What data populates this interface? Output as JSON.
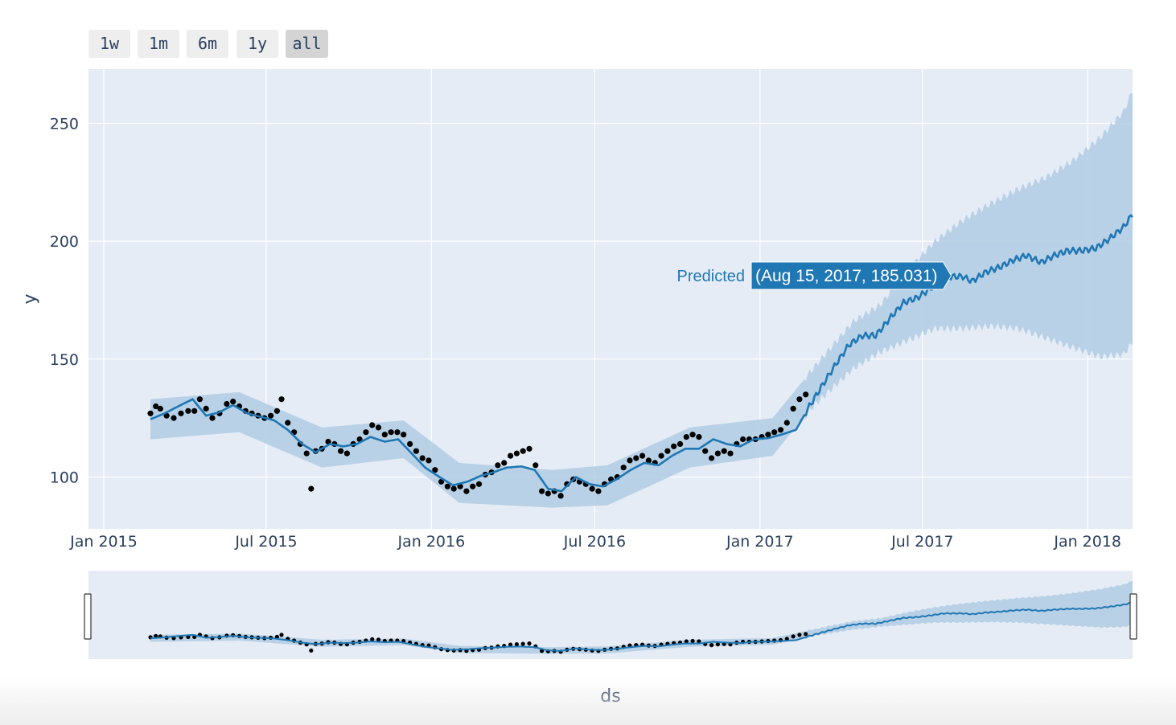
{
  "rangeselector": {
    "buttons": [
      {
        "label": "1w",
        "active": false
      },
      {
        "label": "1m",
        "active": false
      },
      {
        "label": "6m",
        "active": false
      },
      {
        "label": "1y",
        "active": false
      },
      {
        "label": "all",
        "active": true
      }
    ]
  },
  "hover": {
    "name": "Predicted",
    "label": "(Aug 15, 2017, 185.031)",
    "x": "2017-08-15",
    "y": 185.031
  },
  "colors": {
    "plot_bg": "#e5ecf6",
    "grid": "#ffffff",
    "actual_points": "#000000",
    "predicted_line": "#1f77b4",
    "interval_band": "#b0cce3",
    "text": "#2a3f5f"
  },
  "chart_data": {
    "type": "line",
    "title": "",
    "xlabel": "ds",
    "ylabel": "y",
    "x_axis_type": "date",
    "xlim": [
      "2014-12-15",
      "2018-02-20"
    ],
    "ylim": [
      78,
      273
    ],
    "x_ticks": [
      {
        "date": "2015-01-01",
        "label": "Jan 2015"
      },
      {
        "date": "2015-07-01",
        "label": "Jul 2015"
      },
      {
        "date": "2016-01-01",
        "label": "Jan 2016"
      },
      {
        "date": "2016-07-01",
        "label": "Jul 2016"
      },
      {
        "date": "2017-01-01",
        "label": "Jan 2017"
      },
      {
        "date": "2017-07-01",
        "label": "Jul 2017"
      },
      {
        "date": "2018-01-01",
        "label": "Jan 2018"
      }
    ],
    "y_ticks": [
      100,
      150,
      200,
      250
    ],
    "grid": true,
    "rangeslider": true,
    "series": [
      {
        "name": "Predicted",
        "kind": "line",
        "points": [
          [
            "2015-02-22",
            124.5
          ],
          [
            "2015-03-10",
            127
          ],
          [
            "2015-03-25",
            130
          ],
          [
            "2015-04-10",
            133
          ],
          [
            "2015-04-25",
            126
          ],
          [
            "2015-05-10",
            127.5
          ],
          [
            "2015-05-25",
            130.5
          ],
          [
            "2015-06-10",
            127
          ],
          [
            "2015-06-25",
            125.5
          ],
          [
            "2015-07-10",
            124
          ],
          [
            "2015-07-25",
            120
          ],
          [
            "2015-08-10",
            114
          ],
          [
            "2015-08-25",
            110.5
          ],
          [
            "2015-09-10",
            114
          ],
          [
            "2015-09-25",
            113
          ],
          [
            "2015-10-10",
            114
          ],
          [
            "2015-10-25",
            117
          ],
          [
            "2015-11-10",
            115
          ],
          [
            "2015-11-25",
            116
          ],
          [
            "2015-12-10",
            110
          ],
          [
            "2015-12-25",
            104
          ],
          [
            "2016-01-10",
            100
          ],
          [
            "2016-01-25",
            96.5
          ],
          [
            "2016-02-10",
            98
          ],
          [
            "2016-02-25",
            100.5
          ],
          [
            "2016-03-10",
            102
          ],
          [
            "2016-03-25",
            104
          ],
          [
            "2016-04-10",
            104.5
          ],
          [
            "2016-04-25",
            103
          ],
          [
            "2016-05-10",
            95
          ],
          [
            "2016-05-25",
            94
          ],
          [
            "2016-06-10",
            100
          ],
          [
            "2016-06-25",
            97
          ],
          [
            "2016-07-10",
            96
          ],
          [
            "2016-07-25",
            99
          ],
          [
            "2016-08-10",
            103
          ],
          [
            "2016-08-25",
            106
          ],
          [
            "2016-09-10",
            105
          ],
          [
            "2016-09-25",
            109
          ],
          [
            "2016-10-10",
            112
          ],
          [
            "2016-10-25",
            112
          ],
          [
            "2016-11-10",
            116
          ],
          [
            "2016-11-25",
            114
          ],
          [
            "2016-12-10",
            113
          ],
          [
            "2016-12-25",
            116
          ],
          [
            "2017-01-10",
            116.5
          ],
          [
            "2017-01-25",
            118
          ],
          [
            "2017-02-10",
            120
          ],
          [
            "2017-02-25",
            130
          ],
          [
            "2017-03-10",
            138
          ],
          [
            "2017-03-25",
            147
          ],
          [
            "2017-04-10",
            156
          ],
          [
            "2017-04-25",
            160
          ],
          [
            "2017-05-10",
            160
          ],
          [
            "2017-05-25",
            167
          ],
          [
            "2017-06-10",
            174
          ],
          [
            "2017-06-25",
            176
          ],
          [
            "2017-07-10",
            180
          ],
          [
            "2017-07-25",
            185
          ],
          [
            "2017-08-15",
            185.031
          ],
          [
            "2017-08-25",
            183
          ],
          [
            "2017-09-10",
            187
          ],
          [
            "2017-09-25",
            189
          ],
          [
            "2017-10-10",
            192
          ],
          [
            "2017-10-25",
            194
          ],
          [
            "2017-11-10",
            191
          ],
          [
            "2017-11-25",
            194
          ],
          [
            "2017-12-10",
            196
          ],
          [
            "2017-12-25",
            196
          ],
          [
            "2018-01-10",
            197
          ],
          [
            "2018-01-25",
            201
          ],
          [
            "2018-02-10",
            206
          ],
          [
            "2018-02-20",
            211.5
          ]
        ]
      },
      {
        "name": "Interval",
        "kind": "band",
        "points": [
          [
            "2015-02-22",
            116,
            133
          ],
          [
            "2015-06-01",
            119,
            136
          ],
          [
            "2015-09-01",
            104,
            121
          ],
          [
            "2015-12-01",
            108,
            124
          ],
          [
            "2016-02-01",
            89,
            106
          ],
          [
            "2016-05-15",
            87,
            103
          ],
          [
            "2016-07-15",
            88,
            105
          ],
          [
            "2016-10-15",
            104,
            121
          ],
          [
            "2017-01-15",
            109,
            125
          ],
          [
            "2017-03-01",
            130,
            146
          ],
          [
            "2017-04-15",
            146,
            166
          ],
          [
            "2017-05-15",
            153,
            173
          ],
          [
            "2017-06-15",
            158,
            188
          ],
          [
            "2017-07-15",
            163,
            200
          ],
          [
            "2017-08-15",
            163,
            209
          ],
          [
            "2017-09-15",
            164,
            216
          ],
          [
            "2017-10-15",
            163,
            222
          ],
          [
            "2017-11-15",
            159,
            227
          ],
          [
            "2017-12-15",
            155,
            234
          ],
          [
            "2018-01-15",
            151,
            244
          ],
          [
            "2018-02-10",
            152,
            255
          ],
          [
            "2018-02-20",
            157,
            264
          ]
        ]
      },
      {
        "name": "Actual",
        "kind": "markers",
        "points": [
          [
            "2015-02-22",
            127
          ],
          [
            "2015-02-28",
            130
          ],
          [
            "2015-03-05",
            129
          ],
          [
            "2015-03-12",
            126
          ],
          [
            "2015-03-20",
            125
          ],
          [
            "2015-03-28",
            127
          ],
          [
            "2015-04-05",
            128
          ],
          [
            "2015-04-12",
            128
          ],
          [
            "2015-04-18",
            133
          ],
          [
            "2015-04-25",
            129
          ],
          [
            "2015-05-02",
            125
          ],
          [
            "2015-05-10",
            127
          ],
          [
            "2015-05-18",
            131
          ],
          [
            "2015-05-25",
            132
          ],
          [
            "2015-06-01",
            130
          ],
          [
            "2015-06-08",
            128
          ],
          [
            "2015-06-15",
            127
          ],
          [
            "2015-06-22",
            126
          ],
          [
            "2015-06-29",
            125
          ],
          [
            "2015-07-06",
            126
          ],
          [
            "2015-07-13",
            128
          ],
          [
            "2015-07-18",
            133
          ],
          [
            "2015-07-25",
            123
          ],
          [
            "2015-08-01",
            119
          ],
          [
            "2015-08-08",
            114
          ],
          [
            "2015-08-15",
            110
          ],
          [
            "2015-08-20",
            95
          ],
          [
            "2015-08-25",
            111
          ],
          [
            "2015-09-01",
            112
          ],
          [
            "2015-09-08",
            115
          ],
          [
            "2015-09-15",
            114
          ],
          [
            "2015-09-22",
            111
          ],
          [
            "2015-09-29",
            110
          ],
          [
            "2015-10-06",
            114
          ],
          [
            "2015-10-13",
            116
          ],
          [
            "2015-10-20",
            119
          ],
          [
            "2015-10-27",
            122
          ],
          [
            "2015-11-03",
            121
          ],
          [
            "2015-11-10",
            118
          ],
          [
            "2015-11-17",
            119
          ],
          [
            "2015-11-24",
            119
          ],
          [
            "2015-12-01",
            118
          ],
          [
            "2015-12-08",
            114
          ],
          [
            "2015-12-15",
            111
          ],
          [
            "2015-12-22",
            108
          ],
          [
            "2015-12-29",
            107
          ],
          [
            "2016-01-05",
            103
          ],
          [
            "2016-01-12",
            98
          ],
          [
            "2016-01-19",
            96
          ],
          [
            "2016-01-26",
            95
          ],
          [
            "2016-02-02",
            96
          ],
          [
            "2016-02-09",
            94
          ],
          [
            "2016-02-16",
            96
          ],
          [
            "2016-02-23",
            97
          ],
          [
            "2016-03-01",
            101
          ],
          [
            "2016-03-08",
            102
          ],
          [
            "2016-03-15",
            105
          ],
          [
            "2016-03-22",
            106
          ],
          [
            "2016-03-29",
            109
          ],
          [
            "2016-04-05",
            110
          ],
          [
            "2016-04-12",
            111
          ],
          [
            "2016-04-19",
            112
          ],
          [
            "2016-04-26",
            105
          ],
          [
            "2016-05-03",
            94
          ],
          [
            "2016-05-10",
            93
          ],
          [
            "2016-05-17",
            94
          ],
          [
            "2016-05-24",
            92
          ],
          [
            "2016-05-31",
            97
          ],
          [
            "2016-06-07",
            99
          ],
          [
            "2016-06-14",
            98
          ],
          [
            "2016-06-21",
            97
          ],
          [
            "2016-06-28",
            95
          ],
          [
            "2016-07-05",
            94
          ],
          [
            "2016-07-12",
            97
          ],
          [
            "2016-07-19",
            99
          ],
          [
            "2016-07-26",
            100
          ],
          [
            "2016-08-02",
            104
          ],
          [
            "2016-08-09",
            107
          ],
          [
            "2016-08-16",
            108
          ],
          [
            "2016-08-23",
            109
          ],
          [
            "2016-08-30",
            107
          ],
          [
            "2016-09-06",
            106
          ],
          [
            "2016-09-13",
            109
          ],
          [
            "2016-09-20",
            111
          ],
          [
            "2016-09-27",
            113
          ],
          [
            "2016-10-04",
            114
          ],
          [
            "2016-10-11",
            117
          ],
          [
            "2016-10-18",
            118
          ],
          [
            "2016-10-25",
            117
          ],
          [
            "2016-11-01",
            111
          ],
          [
            "2016-11-08",
            108
          ],
          [
            "2016-11-15",
            110
          ],
          [
            "2016-11-22",
            111
          ],
          [
            "2016-11-29",
            110
          ],
          [
            "2016-12-06",
            114
          ],
          [
            "2016-12-13",
            116
          ],
          [
            "2016-12-20",
            116
          ],
          [
            "2016-12-27",
            116
          ],
          [
            "2017-01-03",
            117
          ],
          [
            "2017-01-10",
            118
          ],
          [
            "2017-01-17",
            119
          ],
          [
            "2017-01-24",
            120
          ],
          [
            "2017-01-31",
            123
          ],
          [
            "2017-02-07",
            129
          ],
          [
            "2017-02-14",
            133
          ],
          [
            "2017-02-21",
            135
          ]
        ]
      }
    ]
  }
}
